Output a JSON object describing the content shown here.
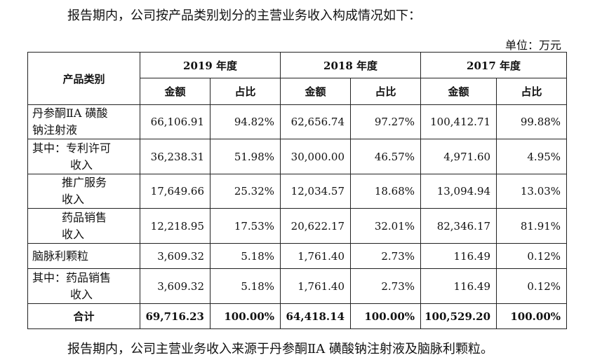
{
  "intro_text": "报告期内，公司按产品类别划分的主营业务收入构成情况如下：",
  "unit_text": "单位：万元",
  "table": {
    "category_header": "产品类别",
    "years": [
      "2019 年度",
      "2018 年度",
      "2017 年度"
    ],
    "amount_label": "金额",
    "ratio_label": "占比",
    "rows": [
      {
        "line1": "丹参酮ⅡA 磺酸",
        "line2": "钠注射液",
        "values": [
          "66,106.91",
          "94.82%",
          "62,656.74",
          "97.27%",
          "100,412.71",
          "99.88%"
        ]
      },
      {
        "line1": "其中：专利许可",
        "line2": "收入",
        "values": [
          "36,238.31",
          "51.98%",
          "30,000.00",
          "46.57%",
          "4,971.60",
          "4.95%"
        ]
      },
      {
        "line1": "推广服务",
        "line2": "收入",
        "values": [
          "17,649.66",
          "25.32%",
          "12,034.57",
          "18.68%",
          "13,094.94",
          "13.03%"
        ]
      },
      {
        "line1": "药品销售",
        "line2": "收入",
        "values": [
          "12,218.95",
          "17.53%",
          "20,622.17",
          "32.01%",
          "82,346.17",
          "81.91%"
        ]
      },
      {
        "line1": "脑脉利颗粒",
        "line2": "",
        "values": [
          "3,609.32",
          "5.18%",
          "1,761.40",
          "2.73%",
          "116.49",
          "0.12%"
        ]
      },
      {
        "line1": "其中：药品销售",
        "line2": "收入",
        "values": [
          "3,609.32",
          "5.18%",
          "1,761.40",
          "2.73%",
          "116.49",
          "0.12%"
        ]
      }
    ],
    "total": {
      "label": "合计",
      "values": [
        "69,716.23",
        "100.00%",
        "64,418.14",
        "100.00%",
        "100,529.20",
        "100.00%"
      ]
    }
  },
  "outro_text": "报告期内，公司主营业务收入来源于丹参酮ⅡA 磺酸钠注射液及脑脉利颗粒。"
}
